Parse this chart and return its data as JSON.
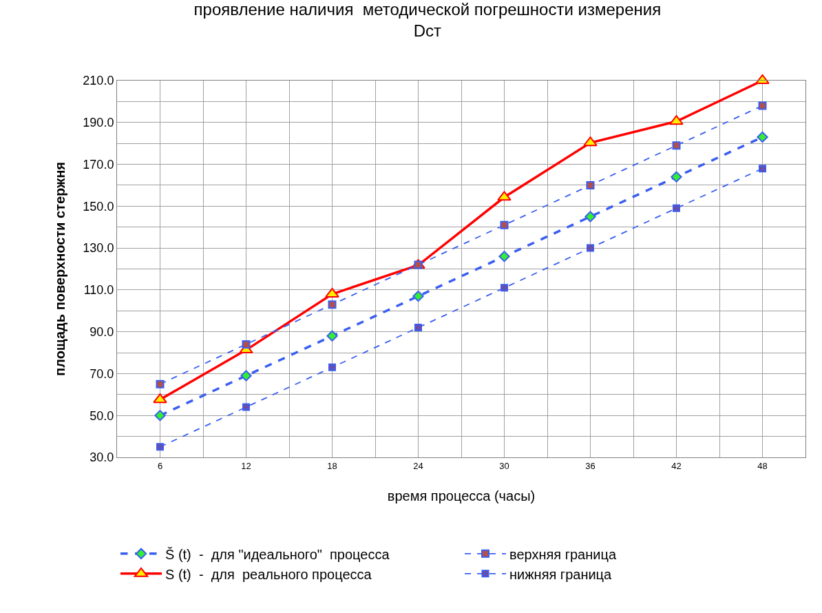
{
  "chart_data": {
    "type": "line",
    "title": "проявление наличия  методической погрешности измерения\nDст",
    "xlabel": "время процесса (часы)",
    "ylabel": "площадь поверхности стержня",
    "x": [
      6,
      12,
      18,
      24,
      30,
      36,
      42,
      48
    ],
    "xlim": [
      3,
      51
    ],
    "xticks": [
      {
        "value": 3,
        "label": null
      },
      6,
      {
        "value": 9,
        "label": null
      },
      12,
      {
        "value": 15,
        "label": null
      },
      18,
      {
        "value": 21,
        "label": null
      },
      24,
      {
        "value": 27,
        "label": null
      },
      30,
      {
        "value": 33,
        "label": null
      },
      36,
      {
        "value": 39,
        "label": null
      },
      42,
      {
        "value": 45,
        "label": null
      },
      48,
      {
        "value": 51,
        "label": null
      }
    ],
    "ylim": [
      30,
      210
    ],
    "yticks": [
      {
        "value": 30,
        "label": "30.0"
      },
      {
        "value": 40,
        "label": null
      },
      {
        "value": 50,
        "label": "50.0"
      },
      {
        "value": 60,
        "label": null
      },
      {
        "value": 70,
        "label": "70.0"
      },
      {
        "value": 80,
        "label": null
      },
      {
        "value": 90,
        "label": "90.0"
      },
      {
        "value": 100,
        "label": null
      },
      {
        "value": 110,
        "label": "110.0"
      },
      {
        "value": 120,
        "label": null
      },
      {
        "value": 130,
        "label": "130.0"
      },
      {
        "value": 140,
        "label": null
      },
      {
        "value": 150,
        "label": "150.0"
      },
      {
        "value": 160,
        "label": null
      },
      {
        "value": 170,
        "label": "170.0"
      },
      {
        "value": 180,
        "label": null
      },
      {
        "value": 190,
        "label": "190.0"
      },
      {
        "value": 200,
        "label": null
      },
      {
        "value": 210,
        "label": "210.0"
      }
    ],
    "grid": true,
    "legend": "bottom",
    "series": [
      {
        "name": "Š (t)  -  для \"идеального\"  процесса",
        "color": "#3a5ef0",
        "marker": "diamond",
        "line_style": "dashed",
        "values": [
          50,
          69,
          88,
          107,
          126,
          145,
          164,
          183
        ]
      },
      {
        "name": "верхняя граница",
        "color": "#3a5ef0",
        "marker": "square",
        "line_style": "dashed",
        "values": [
          65,
          84,
          103,
          122,
          141,
          160,
          179,
          198
        ]
      },
      {
        "name": "S (t)  -  для  реального процесса",
        "color": "#ff0000",
        "marker": "triangle",
        "line_style": "solid",
        "values": [
          57.6,
          81.3,
          108,
          121.8,
          154.3,
          180.3,
          190.5,
          210
        ]
      },
      {
        "name": "нижняя граница",
        "color": "#3a5ef0",
        "marker": "cross",
        "line_style": "dashed",
        "values": [
          35,
          54,
          73,
          92,
          111,
          130,
          149,
          168
        ]
      }
    ]
  }
}
